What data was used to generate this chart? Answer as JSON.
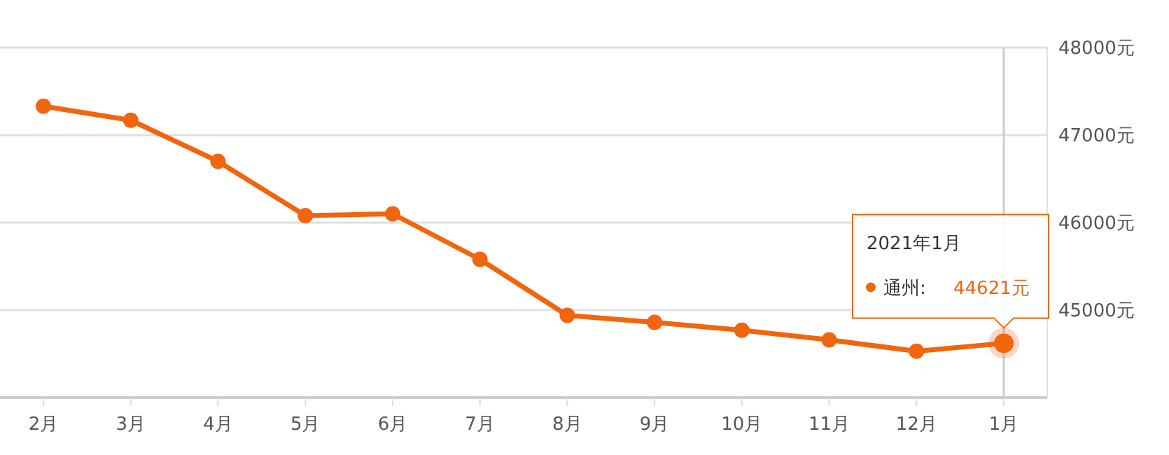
{
  "chart_data": {
    "type": "line",
    "categories": [
      "2月",
      "3月",
      "4月",
      "5月",
      "6月",
      "7月",
      "8月",
      "9月",
      "10月",
      "11月",
      "12月",
      "1月"
    ],
    "series": [
      {
        "name": "通州:",
        "color": "#f0650e",
        "values": [
          47330,
          47170,
          46700,
          46080,
          46100,
          45580,
          44940,
          44860,
          44770,
          44660,
          44530,
          44621
        ],
        "value_labels": [
          null,
          null,
          null,
          null,
          null,
          null,
          null,
          null,
          null,
          null,
          null,
          "44621元"
        ]
      }
    ],
    "ylim": [
      44000,
      48000
    ],
    "yticks": [
      {
        "value": 44000,
        "label": null
      },
      {
        "value": 45000,
        "label": "45000元"
      },
      {
        "value": 46000,
        "label": "46000元"
      },
      {
        "value": 47000,
        "label": "47000元"
      },
      {
        "value": 48000,
        "label": "48000元"
      }
    ],
    "grid": "y",
    "marker": "circle",
    "line_style": "solid",
    "ref_lines": [
      {
        "axis": "x",
        "value": "1月",
        "color": "#cccccc"
      }
    ],
    "annotations": [
      "2021年1月"
    ]
  }
}
